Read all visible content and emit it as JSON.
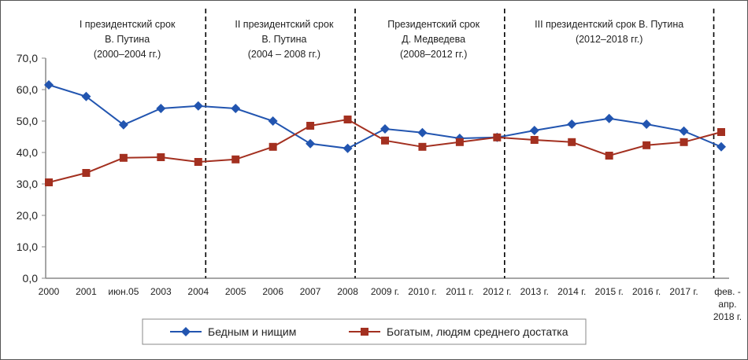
{
  "chart_data": {
    "type": "line",
    "categories": [
      "2000",
      "2001",
      "июн.05",
      "2003",
      "2004",
      "2005",
      "2006",
      "2007",
      "2008",
      "2009 г.",
      "2010 г.",
      "2011 г.",
      "2012 г.",
      "2013 г.",
      "2014 г.",
      "2015 г.",
      "2016 г.",
      "2017 г.",
      "фев. - апр. 2018 г."
    ],
    "series": [
      {
        "name": "Бедным и нищим",
        "color": "#2255b0",
        "marker": "diamond",
        "values": [
          61.5,
          57.8,
          48.8,
          54.0,
          54.8,
          54.0,
          50.0,
          42.8,
          41.3,
          47.5,
          46.3,
          44.5,
          44.8,
          47.0,
          49.0,
          50.8,
          49.0,
          46.8,
          41.8
        ]
      },
      {
        "name": "Богатым, людям среднего достатка",
        "color": "#a33020",
        "marker": "square",
        "values": [
          30.5,
          33.5,
          38.3,
          38.5,
          37.0,
          37.8,
          41.8,
          48.5,
          50.5,
          43.8,
          41.8,
          43.3,
          44.8,
          44.0,
          43.3,
          39.0,
          42.3,
          43.3,
          46.5
        ]
      }
    ],
    "ylim": [
      0,
      70
    ],
    "yticks": [
      "0,0",
      "10,0",
      "20,0",
      "30,0",
      "40,0",
      "50,0",
      "60,0",
      "70,0"
    ],
    "grid": false,
    "legend": "bottom",
    "periods": [
      {
        "lines": [
          "I президентский срок",
          "В. Путина",
          "(2000–2004 гг.)"
        ]
      },
      {
        "lines": [
          "II президентский срок",
          "В. Путина",
          "(2004 – 2008 гг.)"
        ]
      },
      {
        "lines": [
          "Президентский срок",
          "Д. Медведева",
          "(2008–2012 гг.)"
        ]
      },
      {
        "lines": [
          "III президентский срок В. Путина",
          "(2012–2018 гг.)"
        ]
      }
    ]
  }
}
